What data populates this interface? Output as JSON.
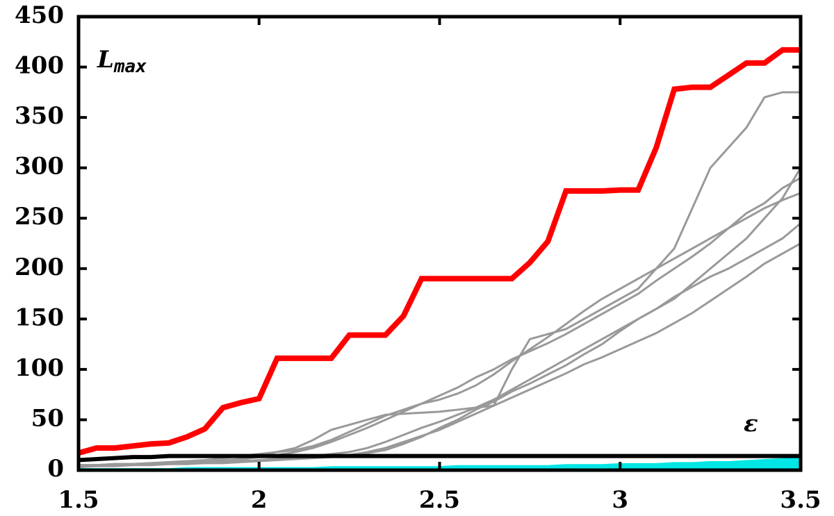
{
  "chart_data": {
    "type": "line",
    "x": [
      1.5,
      1.55,
      1.6,
      1.65,
      1.7,
      1.75,
      1.8,
      1.85,
      1.9,
      1.95,
      2.0,
      2.05,
      2.1,
      2.15,
      2.2,
      2.25,
      2.3,
      2.35,
      2.4,
      2.45,
      2.5,
      2.55,
      2.6,
      2.65,
      2.7,
      2.75,
      2.8,
      2.85,
      2.9,
      2.95,
      3.0,
      3.05,
      3.1,
      3.15,
      3.2,
      3.25,
      3.3,
      3.35,
      3.4,
      3.45,
      3.5
    ],
    "series": [
      {
        "color": "#00e5e5",
        "style": "area",
        "values": [
          2,
          2,
          2,
          2,
          2,
          2,
          3,
          3,
          3,
          3,
          3,
          3,
          3,
          3,
          4,
          4,
          4,
          4,
          4,
          4,
          4,
          5,
          5,
          5,
          5,
          5,
          5,
          6,
          6,
          6,
          7,
          7,
          7,
          8,
          8,
          9,
          9,
          10,
          11,
          12,
          15
        ]
      },
      {
        "color": "#999999",
        "values": [
          5,
          5,
          6,
          6,
          7,
          7,
          8,
          8,
          9,
          10,
          14,
          18,
          22,
          30,
          40,
          45,
          50,
          55,
          56,
          57,
          58,
          60,
          62,
          64,
          100,
          130,
          135,
          140,
          150,
          160,
          170,
          180,
          200,
          220,
          260,
          300,
          320,
          340,
          370,
          375,
          375
        ]
      },
      {
        "color": "#999999",
        "values": [
          4,
          4,
          5,
          5,
          6,
          6,
          7,
          7,
          8,
          9,
          10,
          11,
          12,
          14,
          16,
          18,
          22,
          28,
          35,
          42,
          48,
          55,
          62,
          70,
          80,
          90,
          100,
          110,
          120,
          130,
          140,
          150,
          160,
          170,
          185,
          200,
          215,
          230,
          250,
          270,
          300
        ]
      },
      {
        "color": "#999999",
        "values": [
          3,
          4,
          4,
          5,
          5,
          6,
          6,
          7,
          7,
          8,
          9,
          10,
          11,
          12,
          13,
          15,
          18,
          22,
          28,
          34,
          40,
          48,
          56,
          64,
          72,
          80,
          88,
          96,
          105,
          112,
          120,
          128,
          136,
          146,
          156,
          168,
          180,
          192,
          205,
          215,
          225
        ]
      },
      {
        "color": "#999999",
        "values": [
          5,
          5,
          6,
          6,
          7,
          7,
          8,
          9,
          10,
          11,
          13,
          15,
          18,
          22,
          28,
          35,
          42,
          50,
          58,
          66,
          74,
          82,
          92,
          100,
          110,
          118,
          126,
          135,
          145,
          155,
          165,
          175,
          188,
          200,
          212,
          225,
          240,
          255,
          265,
          280,
          290
        ]
      },
      {
        "color": "#999999",
        "values": [
          4,
          5,
          5,
          6,
          6,
          7,
          7,
          8,
          8,
          9,
          10,
          11,
          12,
          13,
          14,
          15,
          17,
          20,
          26,
          33,
          42,
          50,
          60,
          68,
          78,
          86,
          95,
          104,
          115,
          125,
          138,
          150,
          160,
          172,
          182,
          192,
          200,
          210,
          220,
          230,
          245
        ]
      },
      {
        "color": "#999999",
        "values": [
          5,
          5,
          6,
          6,
          7,
          8,
          9,
          10,
          12,
          14,
          16,
          18,
          20,
          24,
          30,
          38,
          46,
          54,
          60,
          66,
          70,
          76,
          84,
          95,
          108,
          120,
          132,
          145,
          158,
          170,
          180,
          190,
          200,
          210,
          220,
          230,
          240,
          250,
          260,
          268,
          275
        ]
      },
      {
        "color": "#000000",
        "values": [
          10,
          11,
          12,
          13,
          13,
          14,
          14,
          14,
          14,
          14,
          14,
          14,
          14,
          14,
          14,
          14,
          14,
          14,
          14,
          14,
          14,
          14,
          14,
          14,
          14,
          14,
          14,
          14,
          14,
          14,
          14,
          14,
          14,
          14,
          14,
          14,
          14,
          14,
          14,
          14,
          14
        ]
      },
      {
        "color": "#ff0000",
        "values": [
          17,
          22,
          22,
          24,
          26,
          27,
          33,
          41,
          62,
          67,
          71,
          111,
          111,
          111,
          111,
          134,
          134,
          134,
          153,
          190,
          190,
          190,
          190,
          190,
          190,
          206,
          227,
          277,
          277,
          277,
          278,
          278,
          320,
          378,
          380,
          380,
          392,
          404,
          404,
          417,
          417
        ]
      }
    ],
    "annotations": [
      {
        "text": "L",
        "subscript": "max"
      },
      {
        "text": "ε"
      }
    ],
    "xlim": [
      1.5,
      3.5
    ],
    "xticks": [
      1.5,
      2,
      2.5,
      3,
      3.5
    ],
    "ylim": [
      0,
      450
    ],
    "yticks": [
      0,
      50,
      100,
      150,
      200,
      250,
      300,
      350,
      400,
      450
    ]
  }
}
